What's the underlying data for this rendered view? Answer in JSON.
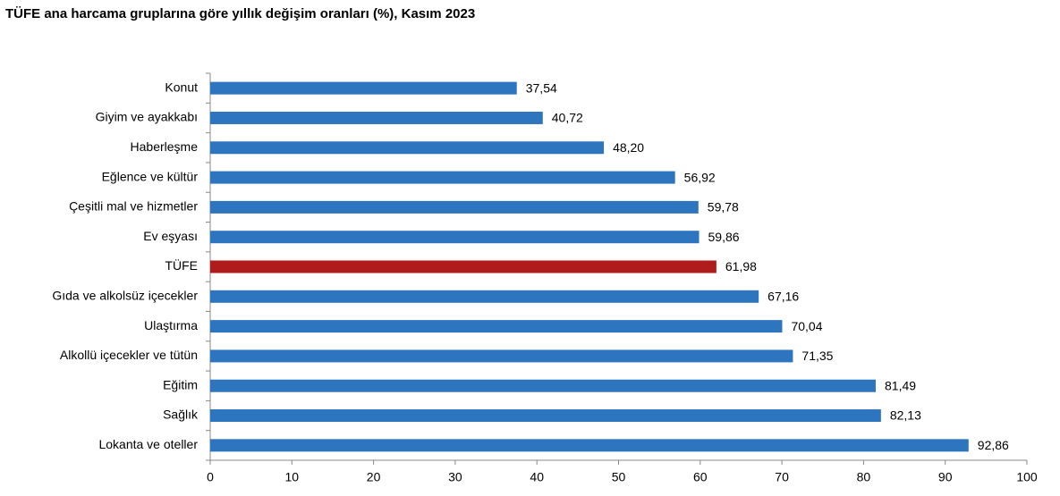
{
  "chart_data": {
    "type": "bar",
    "orientation": "horizontal",
    "title": "TÜFE ana harcama gruplarına göre yıllık değişim oranları (%), Kasım 2023",
    "categories": [
      "Konut",
      "Giyim ve ayakkabı",
      "Haberleşme",
      "Eğlence ve kültür",
      "Çeşitli mal ve hizmetler",
      "Ev eşyası",
      "TÜFE",
      "Gıda ve alkolsüz içecekler",
      "Ulaştırma",
      "Alkollü içecekler ve tütün",
      "Eğitim",
      "Sağlık",
      "Lokanta ve oteller"
    ],
    "values": [
      37.54,
      40.72,
      48.2,
      56.92,
      59.78,
      59.86,
      61.98,
      67.16,
      70.04,
      71.35,
      81.49,
      82.13,
      92.86
    ],
    "value_labels": [
      "37,54",
      "40,72",
      "48,20",
      "56,92",
      "59,78",
      "59,86",
      "61,98",
      "67,16",
      "70,04",
      "71,35",
      "81,49",
      "82,13",
      "92,86"
    ],
    "colors": [
      "#2e75c0",
      "#2e75c0",
      "#2e75c0",
      "#2e75c0",
      "#2e75c0",
      "#2e75c0",
      "#b01c1c",
      "#2e75c0",
      "#2e75c0",
      "#2e75c0",
      "#2e75c0",
      "#2e75c0",
      "#2e75c0"
    ],
    "xlim": [
      0,
      100
    ],
    "xticks": [
      0,
      10,
      20,
      30,
      40,
      50,
      60,
      70,
      80,
      90,
      100
    ],
    "grid": false
  }
}
